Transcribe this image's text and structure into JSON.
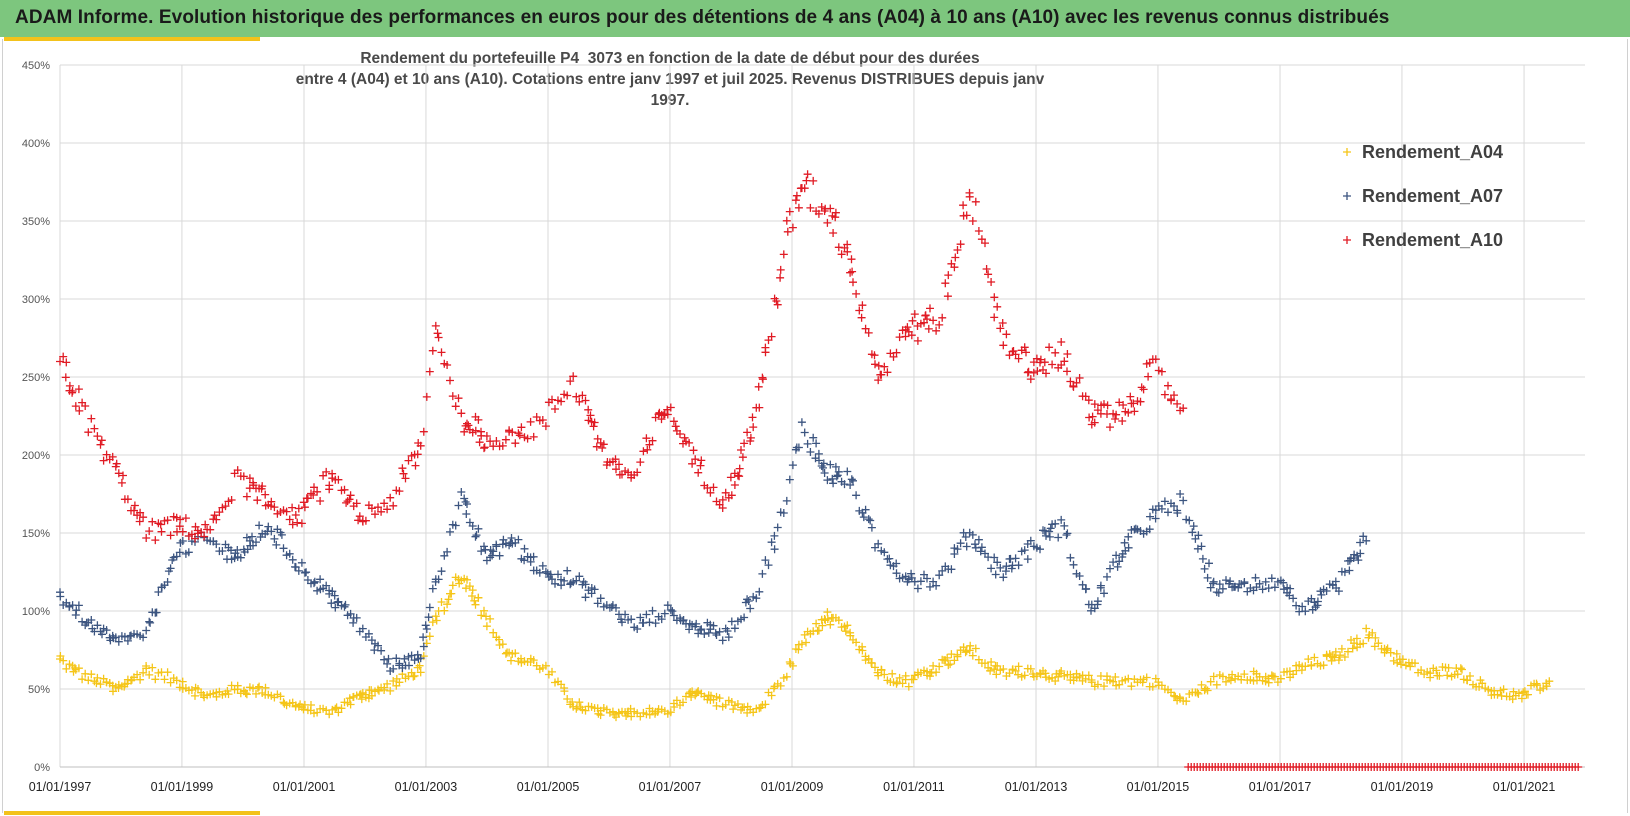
{
  "header": {
    "title": "ADAM Informe. Evolution historique des performances en euros pour des détentions de 4 ans (A04) à 10 ans (A10) avec les revenus connus distribués"
  },
  "colors": {
    "banner": "#7dc67e",
    "accent": "#f3c21b",
    "A04": "#f5c518",
    "A07": "#3c5580",
    "A10": "#e01b24",
    "grid": "#d9d9d9"
  },
  "chart_data": {
    "type": "scatter",
    "title_line1": "Rendement du portefeuille P4_3073 en fonction de la date de début pour des durées",
    "title_line2": "entre 4 (A04) et 10 ans (A10). Cotations  entre janv 1997 et juil 2025. Revenus DISTRIBUES depuis janv 1997.",
    "x_axis": {
      "type": "date",
      "range": [
        "1997-01-01",
        "2022-01-01"
      ],
      "tick_labels": [
        "01/01/1997",
        "01/01/1999",
        "01/01/2001",
        "01/01/2003",
        "01/01/2005",
        "01/01/2007",
        "01/01/2009",
        "01/01/2011",
        "01/01/2013",
        "01/01/2015",
        "01/01/2017",
        "01/01/2019",
        "01/01/2021"
      ],
      "tick_dates": [
        "1997-01-01",
        "1999-01-01",
        "2001-01-01",
        "2003-01-01",
        "2005-01-01",
        "2007-01-01",
        "2009-01-01",
        "2011-01-01",
        "2013-01-01",
        "2015-01-01",
        "2017-01-01",
        "2019-01-01",
        "2021-01-01"
      ]
    },
    "y_axis": {
      "unit": "%",
      "range": [
        0,
        450
      ],
      "tick_labels": [
        "0%",
        "50%",
        "100%",
        "150%",
        "200%",
        "250%",
        "300%",
        "350%",
        "400%",
        "450%"
      ],
      "tick_values": [
        0,
        50,
        100,
        150,
        200,
        250,
        300,
        350,
        400,
        450
      ]
    },
    "grid": true,
    "marker": "+",
    "legend_position": "top-right",
    "series": [
      {
        "name": "Rendement_A04",
        "color": "#f5c518",
        "x": [
          "1997-01-01",
          "1997-06-01",
          "1997-12-01",
          "1998-06-01",
          "1998-12-01",
          "1999-06-01",
          "1999-12-01",
          "2000-06-01",
          "2000-12-01",
          "2001-06-01",
          "2001-12-01",
          "2002-06-01",
          "2002-12-01",
          "2003-03-01",
          "2003-08-01",
          "2004-01-01",
          "2004-06-01",
          "2004-12-01",
          "2005-06-01",
          "2005-12-01",
          "2006-06-01",
          "2006-12-01",
          "2007-06-01",
          "2007-12-01",
          "2008-06-01",
          "2008-12-01",
          "2009-03-01",
          "2009-08-01",
          "2010-01-01",
          "2010-06-01",
          "2010-12-01",
          "2011-06-01",
          "2011-12-01",
          "2012-06-01",
          "2012-12-01",
          "2013-06-01",
          "2013-12-01",
          "2014-06-01",
          "2014-12-01",
          "2015-06-01",
          "2015-12-01",
          "2016-06-01",
          "2016-12-01",
          "2017-06-01",
          "2017-12-01",
          "2018-06-01",
          "2018-12-01",
          "2019-06-01",
          "2019-12-01",
          "2020-06-01",
          "2020-12-01",
          "2021-06-01"
        ],
        "y": [
          68,
          58,
          50,
          62,
          55,
          45,
          50,
          48,
          38,
          35,
          45,
          52,
          62,
          95,
          125,
          95,
          70,
          65,
          40,
          35,
          35,
          35,
          48,
          40,
          35,
          60,
          80,
          95,
          85,
          60,
          55,
          65,
          75,
          60,
          62,
          58,
          55,
          55,
          55,
          42,
          55,
          60,
          55,
          65,
          70,
          85,
          70,
          60,
          62,
          50,
          45,
          55
        ]
      },
      {
        "name": "Rendement_A07",
        "color": "#3c5580",
        "x": [
          "1997-01-01",
          "1997-06-01",
          "1997-12-01",
          "1998-06-01",
          "1998-12-01",
          "1999-06-01",
          "1999-12-01",
          "2000-06-01",
          "2000-12-01",
          "2001-06-01",
          "2001-12-01",
          "2002-06-01",
          "2002-12-01",
          "2003-03-01",
          "2003-08-01",
          "2004-01-01",
          "2004-06-01",
          "2004-12-01",
          "2005-06-01",
          "2005-12-01",
          "2006-06-01",
          "2006-12-01",
          "2007-06-01",
          "2007-12-01",
          "2008-06-01",
          "2008-12-01",
          "2009-03-01",
          "2009-08-01",
          "2010-01-01",
          "2010-06-01",
          "2010-12-01",
          "2011-06-01",
          "2011-12-01",
          "2012-06-01",
          "2012-12-01",
          "2013-06-01",
          "2013-12-01",
          "2014-06-01",
          "2014-12-01",
          "2015-06-01",
          "2015-12-01",
          "2016-06-01",
          "2016-12-01",
          "2017-06-01",
          "2017-12-01",
          "2018-06-01"
        ],
        "y": [
          110,
          95,
          80,
          85,
          140,
          145,
          135,
          155,
          130,
          110,
          90,
          65,
          70,
          120,
          170,
          135,
          145,
          125,
          120,
          105,
          90,
          100,
          90,
          85,
          110,
          170,
          220,
          190,
          180,
          140,
          120,
          120,
          150,
          125,
          140,
          155,
          100,
          140,
          160,
          170,
          115,
          115,
          120,
          100,
          115,
          145
        ]
      },
      {
        "name": "Rendement_A10",
        "color": "#e01b24",
        "x": [
          "1997-01-01",
          "1997-06-01",
          "1997-12-01",
          "1998-06-01",
          "1998-12-01",
          "1999-06-01",
          "1999-12-01",
          "2000-06-01",
          "2000-12-01",
          "2001-06-01",
          "2001-12-01",
          "2002-06-01",
          "2002-12-01",
          "2003-03-01",
          "2003-08-01",
          "2004-01-01",
          "2004-06-01",
          "2004-12-01",
          "2005-06-01",
          "2005-12-01",
          "2006-06-01",
          "2006-12-01",
          "2007-06-01",
          "2007-12-01",
          "2008-06-01",
          "2008-12-01",
          "2009-03-01",
          "2009-08-01",
          "2010-01-01",
          "2010-06-01",
          "2010-12-01",
          "2011-06-01",
          "2011-12-01",
          "2012-06-01",
          "2012-12-01",
          "2013-06-01",
          "2013-12-01",
          "2014-06-01",
          "2014-12-01",
          "2015-06-01"
        ],
        "y": [
          262,
          225,
          190,
          150,
          155,
          150,
          185,
          170,
          160,
          185,
          160,
          170,
          205,
          280,
          225,
          210,
          215,
          220,
          250,
          200,
          185,
          230,
          195,
          170,
          225,
          340,
          370,
          360,
          320,
          250,
          280,
          285,
          370,
          280,
          255,
          265,
          225,
          225,
          255,
          230
        ]
      },
      {
        "name": "Rendement_A10",
        "color": "#e01b24",
        "x_range": [
          "2015-07-01",
          "2021-12-01"
        ],
        "y": 0
      }
    ]
  }
}
